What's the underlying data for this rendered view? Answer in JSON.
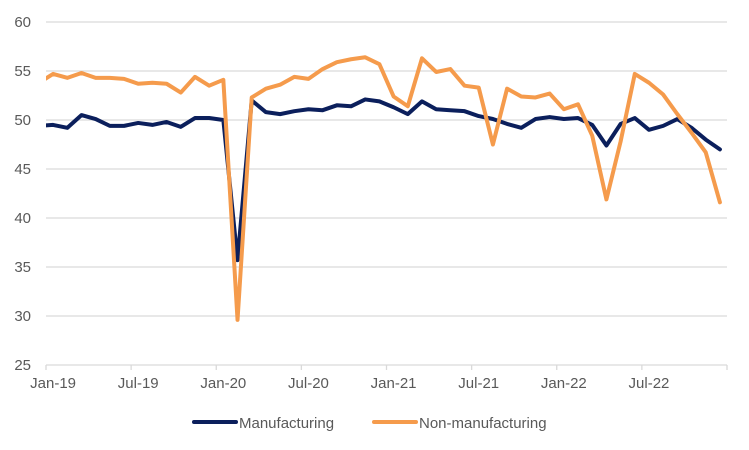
{
  "chart_data": {
    "type": "line",
    "title": "",
    "xlabel": "",
    "ylabel": "",
    "ylim": [
      25,
      60
    ],
    "yticks": [
      25,
      30,
      35,
      40,
      45,
      50,
      55,
      60
    ],
    "grid": true,
    "legend_position": "bottom",
    "x_first_category_before_axis": "Dec-18",
    "x": [
      "Dec-18",
      "Jan-19",
      "Feb-19",
      "Mar-19",
      "Apr-19",
      "May-19",
      "Jun-19",
      "Jul-19",
      "Aug-19",
      "Sep-19",
      "Oct-19",
      "Nov-19",
      "Dec-19",
      "Jan-20",
      "Feb-20",
      "Mar-20",
      "Apr-20",
      "May-20",
      "Jun-20",
      "Jul-20",
      "Aug-20",
      "Sep-20",
      "Oct-20",
      "Nov-20",
      "Dec-20",
      "Jan-21",
      "Feb-21",
      "Mar-21",
      "Apr-21",
      "May-21",
      "Jun-21",
      "Jul-21",
      "Aug-21",
      "Sep-21",
      "Oct-21",
      "Nov-21",
      "Dec-21",
      "Jan-22",
      "Feb-22",
      "Mar-22",
      "Apr-22",
      "May-22",
      "Jun-22",
      "Jul-22",
      "Aug-22",
      "Sep-22",
      "Oct-22",
      "Nov-22",
      "Dec-22"
    ],
    "xtick_labels": [
      "Jan-19",
      "Jul-19",
      "Jan-20",
      "Jul-20",
      "Jan-21",
      "Jul-21",
      "Jan-22",
      "Jul-22"
    ],
    "series": [
      {
        "name": "Manufacturing",
        "color": "#0b1f5c",
        "values": [
          49.4,
          49.5,
          49.2,
          50.5,
          50.1,
          49.4,
          49.4,
          49.7,
          49.5,
          49.8,
          49.3,
          50.2,
          50.2,
          50.0,
          35.7,
          52.0,
          50.8,
          50.6,
          50.9,
          51.1,
          51.0,
          51.5,
          51.4,
          52.1,
          51.9,
          51.3,
          50.6,
          51.9,
          51.1,
          51.0,
          50.9,
          50.4,
          50.1,
          49.6,
          49.2,
          50.1,
          50.3,
          50.1,
          50.2,
          49.5,
          47.4,
          49.6,
          50.2,
          49.0,
          49.4,
          50.1,
          49.2,
          48.0,
          47.0
        ]
      },
      {
        "name": "Non-manufacturing",
        "color": "#f59b4c",
        "values": [
          53.8,
          54.7,
          54.3,
          54.8,
          54.3,
          54.3,
          54.2,
          53.7,
          53.8,
          53.7,
          52.8,
          54.4,
          53.5,
          54.1,
          29.6,
          52.3,
          53.2,
          53.6,
          54.4,
          54.2,
          55.2,
          55.9,
          56.2,
          56.4,
          55.7,
          52.4,
          51.4,
          56.3,
          54.9,
          55.2,
          53.5,
          53.3,
          47.5,
          53.2,
          52.4,
          52.3,
          52.7,
          51.1,
          51.6,
          48.4,
          41.9,
          47.8,
          54.7,
          53.8,
          52.6,
          50.6,
          48.7,
          46.7,
          41.6
        ]
      }
    ]
  }
}
